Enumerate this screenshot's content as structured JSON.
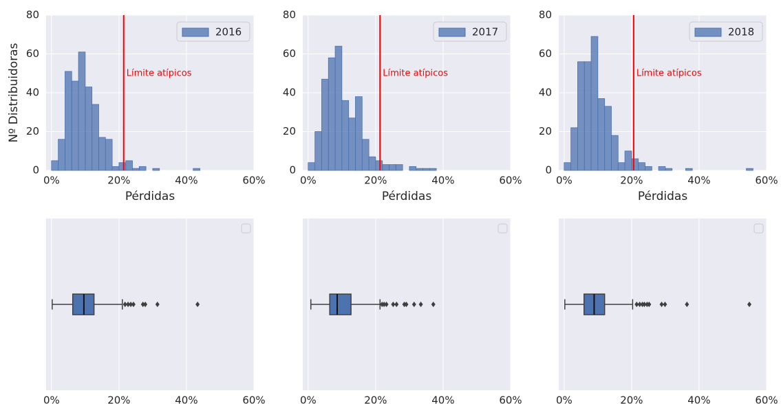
{
  "chart_data": [
    {
      "type": "histogram",
      "xlabel": "Pérdidas",
      "ylabel": "Nº Distribuidoras",
      "bins": [
        0,
        2,
        4,
        6,
        8,
        10,
        12,
        14,
        16,
        18,
        20,
        22,
        24,
        26,
        28,
        30,
        32,
        34,
        36,
        38,
        40,
        42,
        44
      ],
      "series": [
        {
          "name": "2016",
          "color": "#4c72b0",
          "values": [
            5,
            16,
            51,
            46,
            61,
            43,
            34,
            17,
            16,
            2,
            4,
            5,
            1,
            2,
            0,
            1,
            0,
            0,
            0,
            0,
            0,
            1
          ]
        }
      ],
      "vline": {
        "x": 21.4,
        "label": "Límite atípicos",
        "color": "#ff0000"
      },
      "xlim": [
        -1.6,
        60
      ],
      "ylim": [
        0,
        80
      ],
      "xticks": [
        {
          "value": 0,
          "label": "0%"
        },
        {
          "value": 20,
          "label": "20%"
        },
        {
          "value": 40,
          "label": "40%"
        },
        {
          "value": 60,
          "label": "60%"
        }
      ],
      "yticks": [
        0,
        20,
        40,
        60,
        80
      ],
      "grid": true,
      "legend": "upper right"
    },
    {
      "type": "histogram",
      "xlabel": "Pérdidas",
      "bins": [
        0,
        2,
        4,
        6,
        8,
        10,
        12,
        14,
        16,
        18,
        20,
        22,
        24,
        26,
        28,
        30,
        32,
        34,
        36,
        38
      ],
      "series": [
        {
          "name": "2017",
          "color": "#4c72b0",
          "values": [
            4,
            20,
            47,
            58,
            64,
            36,
            27,
            38,
            16,
            7,
            5,
            3,
            3,
            3,
            0,
            2,
            1,
            1,
            1
          ]
        }
      ],
      "vline": {
        "x": 21.3,
        "label": "Límite atípicos",
        "color": "#ff0000"
      },
      "xlim": [
        -1.6,
        60
      ],
      "ylim": [
        0,
        80
      ],
      "xticks": [
        {
          "value": 0,
          "label": "0%"
        },
        {
          "value": 20,
          "label": "20%"
        },
        {
          "value": 40,
          "label": "40%"
        },
        {
          "value": 60,
          "label": "60%"
        }
      ],
      "yticks": [
        0,
        20,
        40,
        60,
        80
      ],
      "grid": true,
      "legend": "upper right"
    },
    {
      "type": "histogram",
      "xlabel": "Pérdidas",
      "bins": [
        0,
        2,
        4,
        6,
        8,
        10,
        12,
        14,
        16,
        18,
        20,
        22,
        24,
        26,
        28,
        30,
        32,
        34,
        36,
        38,
        40,
        42,
        44,
        46,
        48,
        50,
        52,
        54,
        56
      ],
      "series": [
        {
          "name": "2018",
          "color": "#4c72b0",
          "values": [
            4,
            22,
            56,
            56,
            69,
            37,
            33,
            18,
            4,
            10,
            6,
            4,
            2,
            0,
            2,
            1,
            0,
            0,
            1,
            0,
            0,
            0,
            0,
            0,
            0,
            0,
            0,
            1
          ]
        }
      ],
      "vline": {
        "x": 20.6,
        "label": "Límite atípicos",
        "color": "#ff0000"
      },
      "xlim": [
        -1.6,
        60
      ],
      "ylim": [
        0,
        80
      ],
      "xticks": [
        {
          "value": 0,
          "label": "0%"
        },
        {
          "value": 20,
          "label": "20%"
        },
        {
          "value": 40,
          "label": "40%"
        },
        {
          "value": 60,
          "label": "60%"
        }
      ],
      "yticks": [
        0,
        20,
        40,
        60,
        80
      ],
      "grid": true,
      "legend": "upper right"
    },
    {
      "type": "box",
      "xlabel": "Pérdidas",
      "color": "#4c72b0",
      "stats": {
        "whislo": 0.2,
        "q1": 6.3,
        "med": 9.6,
        "q3": 12.6,
        "whishi": 21.0
      },
      "fliers": [
        21.8,
        22.7,
        23.5,
        24.3,
        27.1,
        27.8,
        31.4,
        43.3
      ],
      "xlim": [
        -1.6,
        60
      ],
      "xticks": [
        {
          "value": 0,
          "label": "0%"
        },
        {
          "value": 20,
          "label": "20%"
        },
        {
          "value": 40,
          "label": "40%"
        },
        {
          "value": 60,
          "label": "60%"
        }
      ],
      "grid": true
    },
    {
      "type": "box",
      "xlabel": "Pérdidas",
      "color": "#4c72b0",
      "stats": {
        "whislo": 0.8,
        "q1": 6.4,
        "med": 8.6,
        "q3": 12.7,
        "whishi": 21.3
      },
      "fliers": [
        21.9,
        22.5,
        23.2,
        25.2,
        26.2,
        28.5,
        29.1,
        31.4,
        33.4,
        37.1
      ],
      "xlim": [
        -1.6,
        60
      ],
      "xticks": [
        {
          "value": 0,
          "label": "0%"
        },
        {
          "value": 20,
          "label": "20%"
        },
        {
          "value": 40,
          "label": "40%"
        },
        {
          "value": 60,
          "label": "60%"
        }
      ],
      "grid": true
    },
    {
      "type": "box",
      "xlabel": "Pérdidas",
      "color": "#4c72b0",
      "stats": {
        "whislo": 0.2,
        "q1": 5.9,
        "med": 8.9,
        "q3": 12.0,
        "whishi": 20.3
      },
      "fliers": [
        21.5,
        22.4,
        23.2,
        23.8,
        24.6,
        25.2,
        28.9,
        29.9,
        36.4,
        54.9
      ],
      "xlim": [
        -1.6,
        60
      ],
      "xticks": [
        {
          "value": 0,
          "label": "0%"
        },
        {
          "value": 20,
          "label": "20%"
        },
        {
          "value": 40,
          "label": "40%"
        },
        {
          "value": 60,
          "label": "60%"
        }
      ],
      "grid": true
    }
  ]
}
